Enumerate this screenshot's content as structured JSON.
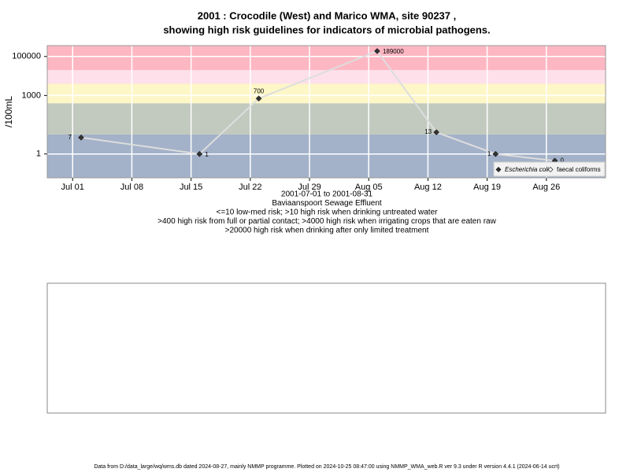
{
  "chart_data": {
    "type": "line",
    "title": [
      "2001 : Crocodile (West) and Marico WMA, site 90237 ,",
      "showing high risk guidelines for indicators of microbial pathogens."
    ],
    "ylabel": "/100mL",
    "notes": [
      "2001-07-01 to 2001-08-31",
      "Baviaanspoort Sewage Effluent",
      "<=10 low-med risk; >10 high risk when drinking untreated water",
      ">400 high risk from full or partial contact; >4000 high risk when irrigating crops that are eaten raw",
      ">20000 high risk when drinking after only limited treatment"
    ],
    "footer": "Data from D:/data_large/wq/wms.db dated 2024-08-27, mainly NMMP programme. Plotted on 2024-10-25 08:47:00 using NMMP_WMA_web.R ver 9.3 under R version 4.4.1 (2024-06-14 ucrt)",
    "x": [
      "2001-07-02",
      "2001-07-16",
      "2001-07-23",
      "2001-08-06",
      "2001-08-13",
      "2001-08-20",
      "2001-08-27"
    ],
    "series": [
      {
        "name": "Escherichia coli",
        "color": "#333333",
        "values": [
          7,
          1,
          700,
          189000,
          13,
          1,
          0.45
        ],
        "value_labels": [
          "7",
          "1",
          "700",
          "189000",
          "13",
          "1",
          "0"
        ]
      },
      {
        "name": "faecal coliforms",
        "color": "#ffffff",
        "values": [
          null,
          null,
          null,
          null,
          null,
          null,
          null
        ]
      }
    ],
    "line_color": "#dddddd",
    "log_y": true,
    "ylim": [
      0.06,
      360000
    ],
    "yticks": [
      1,
      1000,
      100000
    ],
    "xlim": [
      "2001-06-28",
      "2001-09-02"
    ],
    "xticks": [
      {
        "value": "2001-07-01",
        "label": "Jul 01"
      },
      {
        "value": "2001-07-08",
        "label": "Jul 08"
      },
      {
        "value": "2001-07-15",
        "label": "Jul 15"
      },
      {
        "value": "2001-07-22",
        "label": "Jul 22"
      },
      {
        "value": "2001-07-29",
        "label": "Jul 29"
      },
      {
        "value": "2001-08-05",
        "label": "Aug 05"
      },
      {
        "value": "2001-08-12",
        "label": "Aug 12"
      },
      {
        "value": "2001-08-19",
        "label": "Aug 19"
      },
      {
        "value": "2001-08-26",
        "label": "Aug 26"
      }
    ],
    "band_breaks": [
      10,
      400,
      4000,
      20000
    ],
    "band_colors": [
      "#a3b2c9",
      "#c2cabf",
      "#fdf6c7",
      "#fde0ea",
      "#fdb7c3"
    ],
    "grid": true,
    "legend": "bottom-right"
  }
}
